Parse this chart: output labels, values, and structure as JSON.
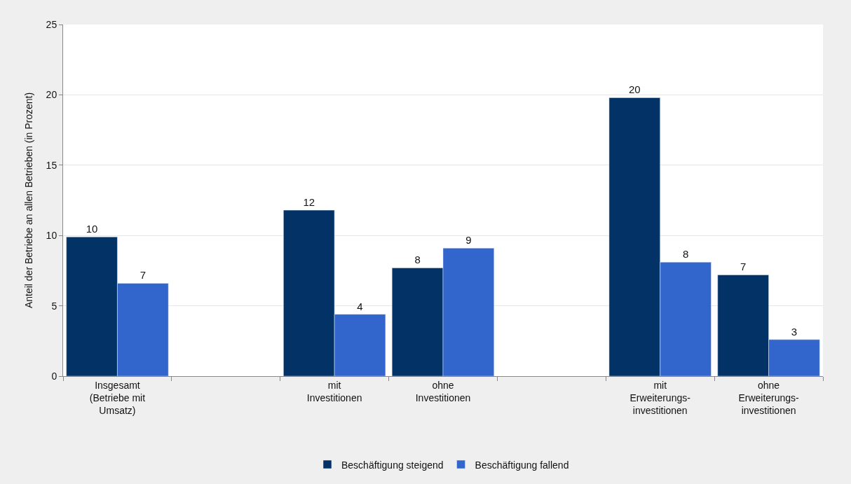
{
  "chart_data": {
    "type": "bar",
    "ylabel": "Anteil der Betriebe an allen Betrieben (in Prozent)",
    "categories": [
      "Insgesamt\n(Betriebe mit\nUmsatz)",
      null,
      "mit\nInvestitionen",
      "ohne\nInvestitionen",
      null,
      "mit\nErweiterungs-\ninvestitionen",
      "ohne\nErweiterungs-\ninvestitionen"
    ],
    "series": [
      {
        "name": "Beschäftigung steigend",
        "color": "#033366",
        "values": [
          9.9,
          null,
          11.8,
          7.7,
          null,
          19.8,
          7.2
        ],
        "value_labels": [
          "10",
          null,
          "12",
          "8",
          null,
          "20",
          "7"
        ]
      },
      {
        "name": "Beschäftigung fallend",
        "color": "#3366cc",
        "values": [
          6.6,
          null,
          4.4,
          9.1,
          null,
          8.1,
          2.6
        ],
        "value_labels": [
          "7",
          null,
          "4",
          "9",
          null,
          "8",
          "3"
        ]
      }
    ],
    "ylim": [
      0,
      25
    ],
    "yticks": [
      0,
      5,
      10,
      15,
      20,
      25
    ],
    "grid": "y",
    "legend": "bottom"
  }
}
